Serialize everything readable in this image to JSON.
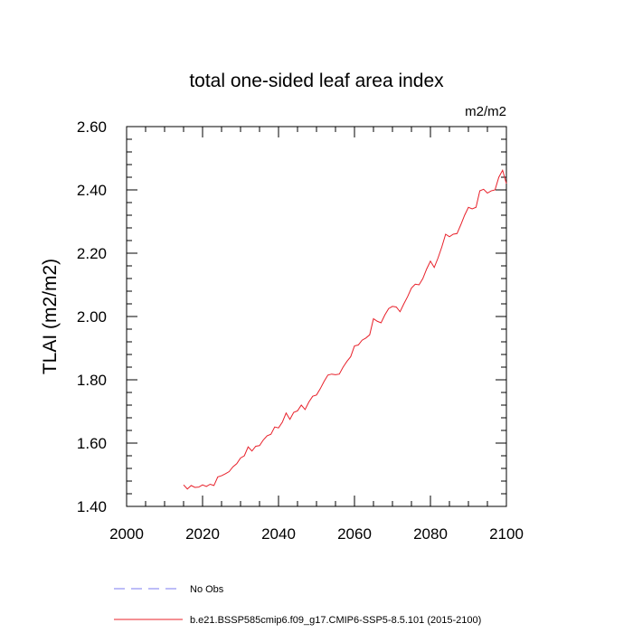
{
  "chart_data": {
    "type": "line",
    "title": "total one-sided leaf area index",
    "units_label": "m2/m2",
    "ylabel": "TLAI  (m2/m2)",
    "xlabel": "",
    "xlim": [
      2000,
      2100
    ],
    "ylim": [
      1.4,
      2.6
    ],
    "x_ticks": [
      2000,
      2020,
      2040,
      2060,
      2080,
      2100
    ],
    "x_tick_labels": [
      "2000",
      "2020",
      "2040",
      "2060",
      "2080",
      "2100"
    ],
    "y_ticks": [
      1.4,
      1.6,
      1.8,
      2.0,
      2.2,
      2.4,
      2.6
    ],
    "y_tick_labels": [
      "1.40",
      "1.60",
      "1.80",
      "2.00",
      "2.20",
      "2.40",
      "2.60"
    ],
    "series": [
      {
        "name": "b.e21.BSSP585cmip6.f09_g17.CMIP6-SSP5-8.5.101 (2015-2100)",
        "color": "#e8202a",
        "x": [
          2015,
          2016,
          2017,
          2018,
          2019,
          2020,
          2021,
          2022,
          2023,
          2024,
          2025,
          2026,
          2027,
          2028,
          2029,
          2030,
          2031,
          2032,
          2033,
          2034,
          2035,
          2036,
          2037,
          2038,
          2039,
          2040,
          2041,
          2042,
          2043,
          2044,
          2045,
          2046,
          2047,
          2048,
          2049,
          2050,
          2051,
          2052,
          2053,
          2054,
          2055,
          2056,
          2057,
          2058,
          2059,
          2060,
          2061,
          2062,
          2063,
          2064,
          2065,
          2066,
          2067,
          2068,
          2069,
          2070,
          2071,
          2072,
          2073,
          2074,
          2075,
          2076,
          2077,
          2078,
          2079,
          2080,
          2081,
          2082,
          2083,
          2084,
          2085,
          2086,
          2087,
          2088,
          2089,
          2090,
          2091,
          2092,
          2093,
          2094,
          2095,
          2096,
          2097,
          2098,
          2099,
          2100
        ],
        "y": [
          1.468,
          1.455,
          1.466,
          1.46,
          1.461,
          1.468,
          1.463,
          1.47,
          1.466,
          1.493,
          1.497,
          1.503,
          1.51,
          1.525,
          1.535,
          1.553,
          1.56,
          1.588,
          1.575,
          1.59,
          1.592,
          1.61,
          1.623,
          1.628,
          1.651,
          1.648,
          1.666,
          1.695,
          1.675,
          1.697,
          1.702,
          1.72,
          1.706,
          1.73,
          1.748,
          1.752,
          1.772,
          1.795,
          1.815,
          1.818,
          1.816,
          1.818,
          1.84,
          1.858,
          1.873,
          1.907,
          1.91,
          1.925,
          1.932,
          1.942,
          1.993,
          1.985,
          1.98,
          2.005,
          2.025,
          2.032,
          2.03,
          2.015,
          2.04,
          2.063,
          2.09,
          2.102,
          2.1,
          2.12,
          2.15,
          2.175,
          2.155,
          2.185,
          2.22,
          2.26,
          2.252,
          2.26,
          2.262,
          2.29,
          2.32,
          2.345,
          2.34,
          2.345,
          2.397,
          2.402,
          2.39,
          2.397,
          2.4,
          2.44,
          2.462,
          2.42
        ]
      }
    ],
    "legend": [
      {
        "label": "No Obs",
        "color": "#7b7bf0",
        "style": "dashed"
      },
      {
        "label": "b.e21.BSSP585cmip6.f09_g17.CMIP6-SSP5-8.5.101 (2015-2100)",
        "color": "#e8202a",
        "style": "solid"
      }
    ],
    "grid": false,
    "legend_placement": "bottom"
  }
}
